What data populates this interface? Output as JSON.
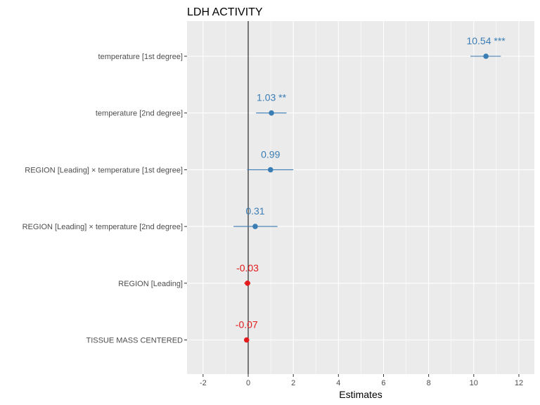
{
  "chart_data": {
    "type": "forest",
    "title": "LDH ACTIVITY",
    "xlabel": "Estimates",
    "ylabel": "",
    "xlim": [
      -2.6,
      12.7
    ],
    "xticks": [
      -2,
      0,
      2,
      4,
      6,
      8,
      10,
      12
    ],
    "grid": true,
    "reference_line": 0,
    "colors": {
      "positive": "#3a7db5",
      "negative": "#e41a1c",
      "panel": "#ebebeb",
      "grid": "#ffffff"
    },
    "terms": [
      {
        "label": "temperature [1st degree]",
        "estimate": 10.54,
        "ci_low": 9.85,
        "ci_high": 11.2,
        "text": "10.54 ***",
        "sign": "positive"
      },
      {
        "label": "temperature [2nd degree]",
        "estimate": 1.03,
        "ci_low": 0.35,
        "ci_high": 1.7,
        "text": "1.03 **",
        "sign": "positive"
      },
      {
        "label": "REGION [Leading] × temperature [1st degree]",
        "estimate": 0.99,
        "ci_low": -0.05,
        "ci_high": 2.0,
        "text": "0.99",
        "sign": "positive"
      },
      {
        "label": "REGION [Leading] × temperature [2nd degree]",
        "estimate": 0.31,
        "ci_low": -0.65,
        "ci_high": 1.3,
        "text": "0.31",
        "sign": "positive"
      },
      {
        "label": "REGION [Leading]",
        "estimate": -0.03,
        "ci_low": -0.18,
        "ci_high": 0.1,
        "text": "-0.03",
        "sign": "negative"
      },
      {
        "label": "TISSUE MASS CENTERED",
        "estimate": -0.07,
        "ci_low": -0.12,
        "ci_high": -0.02,
        "text": "-0.07",
        "sign": "negative"
      }
    ]
  }
}
